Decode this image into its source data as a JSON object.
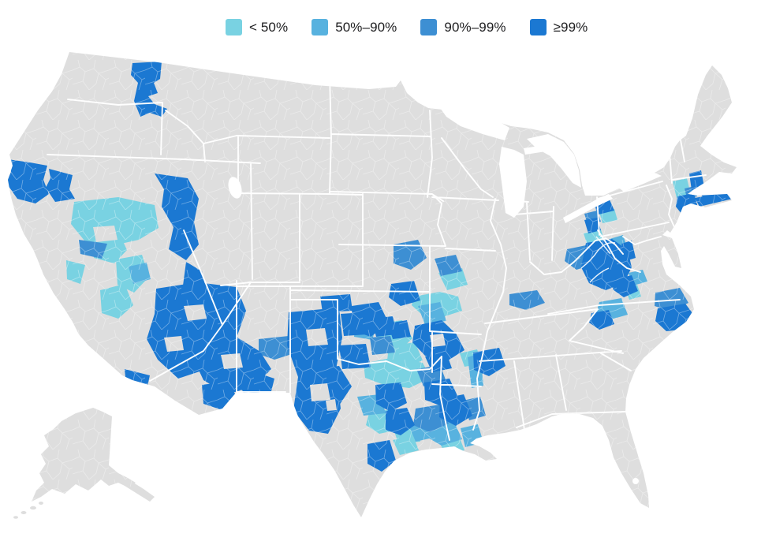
{
  "figure": {
    "kind": "choropleth-map",
    "region": "United States (lower 48 states and Alaska), county-level shading"
  },
  "legend": {
    "classes": [
      {
        "label": "< 50%",
        "color": "#79D2E2"
      },
      {
        "label": "50%–90%",
        "color": "#58B2DF"
      },
      {
        "label": "90%–99%",
        "color": "#3D8FD3"
      },
      {
        "label": "≥99%",
        "color": "#1B78D2"
      }
    ]
  },
  "map": {
    "land_color": "#DEDEDE",
    "border_color": "#FFFFFF",
    "background_color": "#FFFFFF",
    "highlighted_regions": [
      {
        "name": "idaho-panhandle",
        "class": "≥99%"
      },
      {
        "name": "northern-california-coast",
        "class": "≥99%"
      },
      {
        "name": "sacramento-valley",
        "class": "< 50%"
      },
      {
        "name": "sierra-nevada-eastern-california",
        "class": "≥99%"
      },
      {
        "name": "central-nevada",
        "class": "< 50%"
      },
      {
        "name": "southern-california-inland",
        "class": "≥99%"
      },
      {
        "name": "northern-and-central-arizona",
        "class": "≥99%"
      },
      {
        "name": "western-new-mexico",
        "class": "90%–99%"
      },
      {
        "name": "eastern-new-mexico-and-texas-panhandle",
        "class": "≥99%"
      },
      {
        "name": "oklahoma",
        "class": "mixed (all classes)"
      },
      {
        "name": "north-texas-red-river",
        "class": "< 50%"
      },
      {
        "name": "central-and-south-texas",
        "class": "mixed"
      },
      {
        "name": "texas-gulf-coast",
        "class": "mixed"
      },
      {
        "name": "arkansas",
        "class": "mixed, mostly ≥99%"
      },
      {
        "name": "louisiana",
        "class": "mixed"
      },
      {
        "name": "western-missouri-kansas-city",
        "class": "90%–99%"
      },
      {
        "name": "central-missouri",
        "class": "< 50%"
      },
      {
        "name": "northern-mississippi",
        "class": "≥99%"
      },
      {
        "name": "western-kentucky",
        "class": "90%–99%"
      },
      {
        "name": "kentucky-west-virginia-ohio-valley",
        "class": "mixed, mostly ≥99%"
      },
      {
        "name": "central-north-carolina",
        "class": "50%–90% and ≥99%"
      },
      {
        "name": "eastern-north-carolina",
        "class": "90%–99% and ≥99%"
      },
      {
        "name": "western-new-york",
        "class": "mixed"
      },
      {
        "name": "hudson-valley",
        "class": "< 50%"
      },
      {
        "name": "new-york-city-long-island-connecticut-new-jersey",
        "class": "mostly ≥99%"
      }
    ]
  }
}
